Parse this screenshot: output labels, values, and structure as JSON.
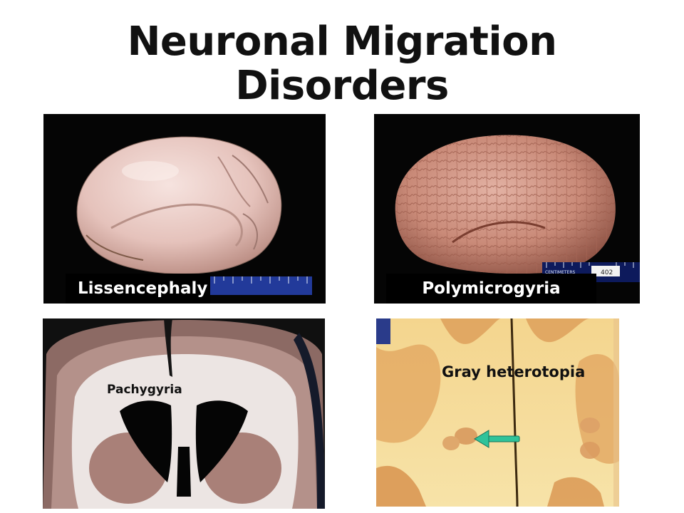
{
  "slide": {
    "title_line1": "Neuronal Migration",
    "title_line2": "Disorders"
  },
  "panels": {
    "lissencephaly": {
      "caption": "Lissencephaly"
    },
    "polymicrogyria": {
      "caption": "Polymicrogyria",
      "ruler_text": "CENTIMETERS",
      "tag_text": "402"
    },
    "pachygyria": {
      "label": "Pachygyria"
    },
    "heterotopia": {
      "label": "Gray heterotopia"
    }
  },
  "colors": {
    "arrow": "#2fc39a",
    "caption_bg": "#000000",
    "caption_text": "#ffffff"
  }
}
